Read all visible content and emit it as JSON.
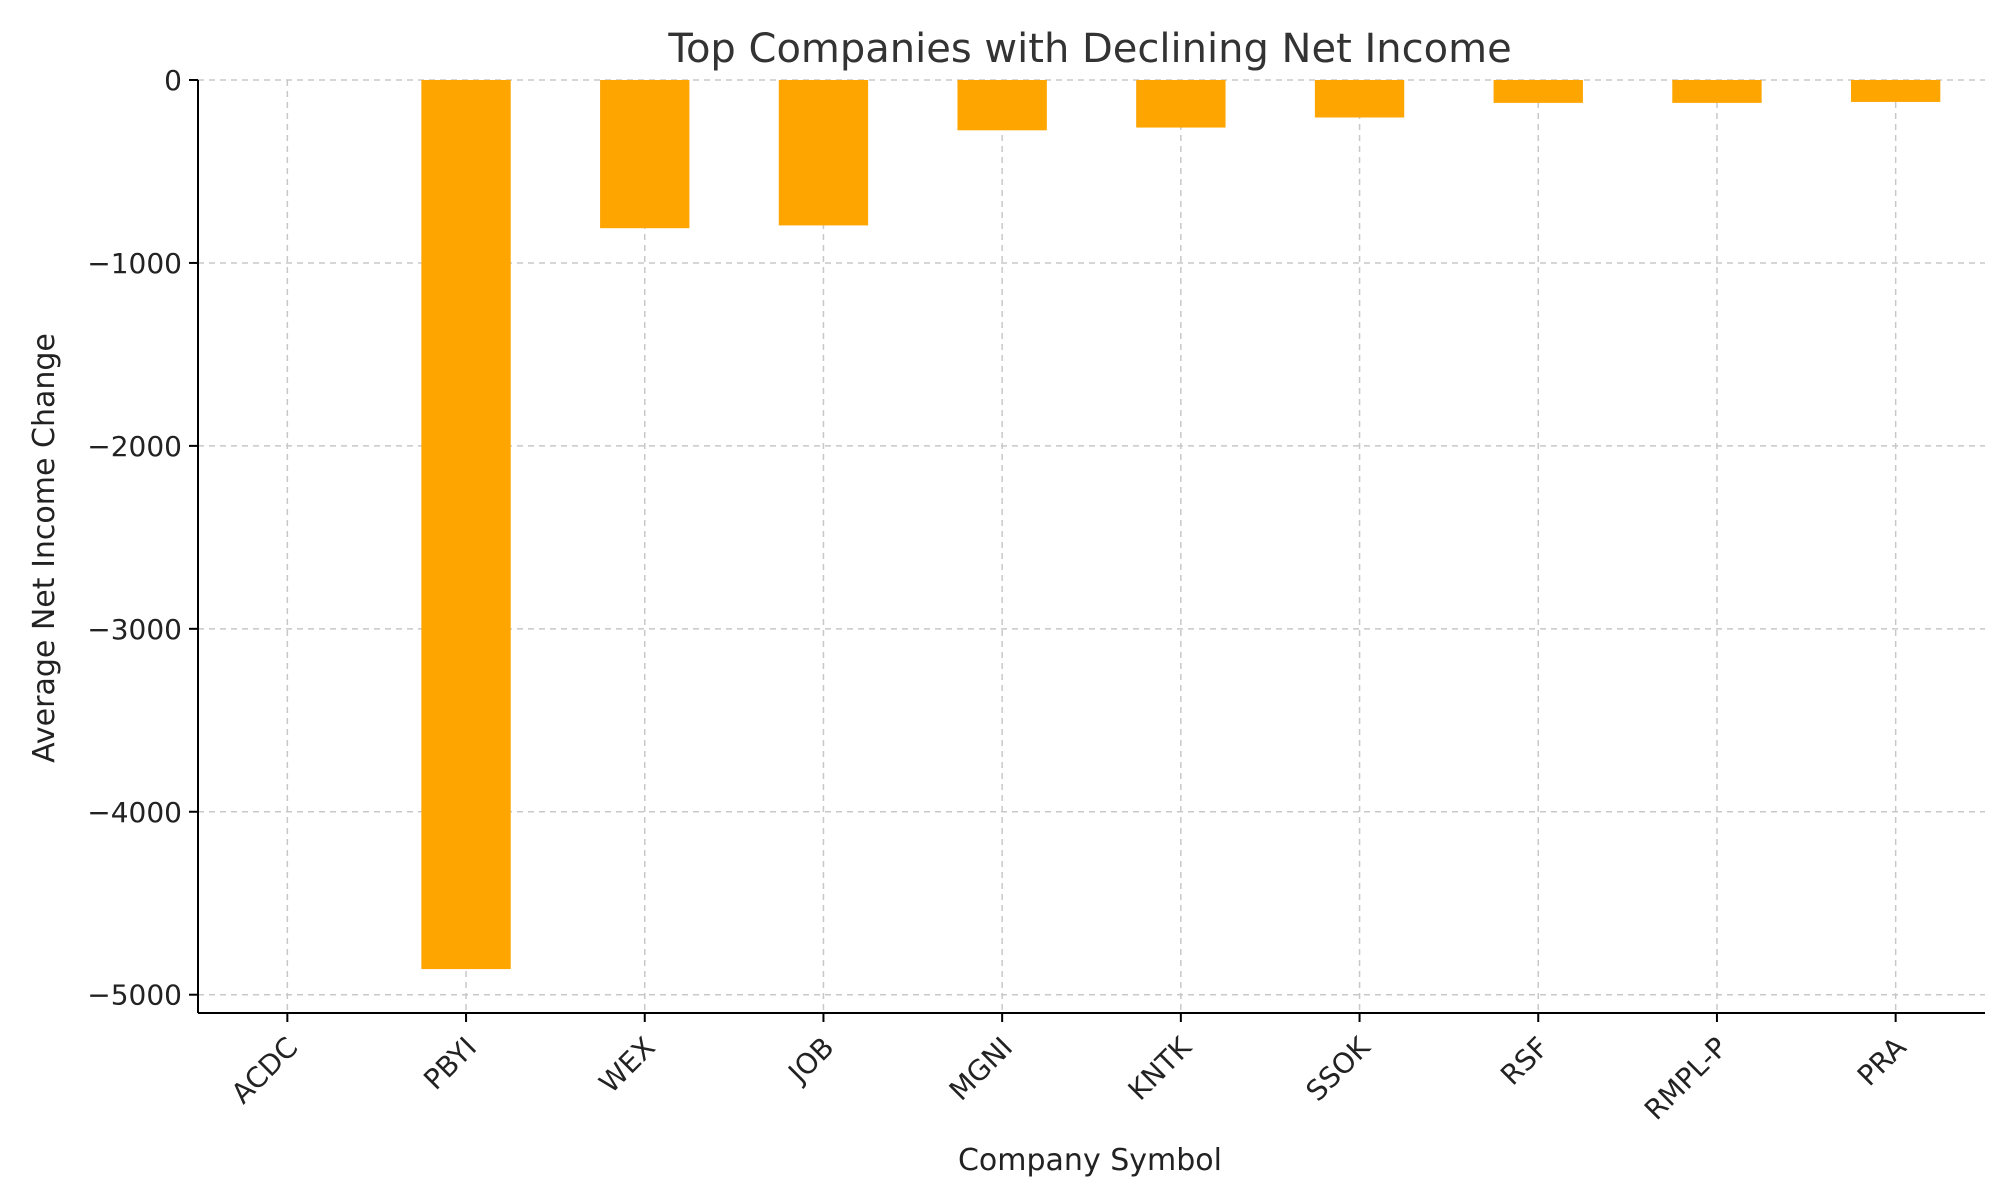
{
  "chart_data": {
    "type": "bar",
    "title": "Top Companies with Declining Net Income",
    "xlabel": "Company Symbol",
    "ylabel": "Average Net Income Change",
    "categories": [
      "ACDC",
      "PBYI",
      "WEX",
      "JOB",
      "MGNI",
      "KNTK",
      "SSOK",
      "RSF",
      "RMPL-P",
      "PRA"
    ],
    "values": [
      0,
      -4860,
      -810,
      -795,
      -275,
      -260,
      -205,
      -125,
      -125,
      -120
    ],
    "yticks": [
      0,
      -1000,
      -2000,
      -3000,
      -4000,
      -5000
    ],
    "ytick_labels": [
      "0",
      "−1000",
      "−2000",
      "−3000",
      "−4000",
      "−5000"
    ],
    "ylim": [
      -5100,
      0
    ],
    "grid": true,
    "bar_color": "#FFA500"
  }
}
